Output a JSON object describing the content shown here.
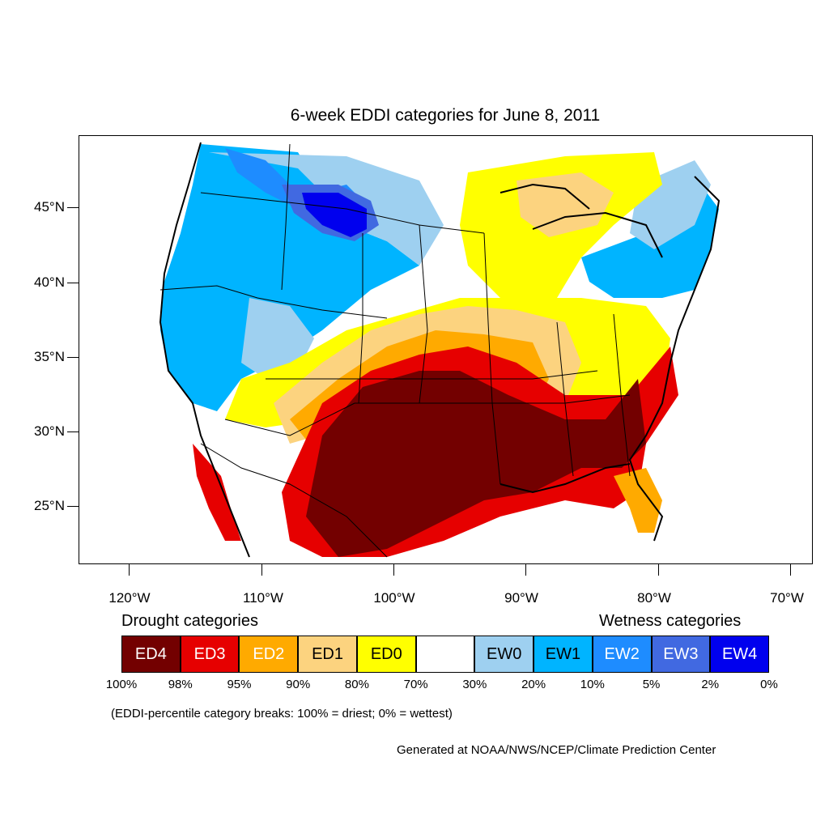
{
  "title": "6-week EDDI categories for June 8, 2011",
  "lat_labels": [
    "45°N",
    "40°N",
    "35°N",
    "30°N",
    "25°N"
  ],
  "lon_labels": [
    "120°W",
    "110°W",
    "100°W",
    "90°W",
    "80°W",
    "70°W"
  ],
  "legend": {
    "drought_heading": "Drought categories",
    "wetness_heading": "Wetness categories",
    "categories": [
      {
        "label": "ED4",
        "color": "#730000",
        "text_color": "#ffffff"
      },
      {
        "label": "ED3",
        "color": "#e60000",
        "text_color": "#ffffff"
      },
      {
        "label": "ED2",
        "color": "#ffaa00",
        "text_color": "#ffffff"
      },
      {
        "label": "ED1",
        "color": "#fcd37f",
        "text_color": "#000000"
      },
      {
        "label": "ED0",
        "color": "#ffff00",
        "text_color": "#000000"
      },
      {
        "label": "",
        "color": "#ffffff",
        "text_color": "#000000"
      },
      {
        "label": "EW0",
        "color": "#9ed0f0",
        "text_color": "#000000"
      },
      {
        "label": "EW1",
        "color": "#00b4ff",
        "text_color": "#000000"
      },
      {
        "label": "EW2",
        "color": "#1e8cff",
        "text_color": "#ffffff"
      },
      {
        "label": "EW3",
        "color": "#4169e1",
        "text_color": "#ffffff"
      },
      {
        "label": "EW4",
        "color": "#0000ee",
        "text_color": "#ffffff"
      }
    ],
    "percentiles": [
      "100%",
      "98%",
      "95%",
      "90%",
      "80%",
      "70%",
      "30%",
      "20%",
      "10%",
      "5%",
      "2%",
      "0%"
    ]
  },
  "note": "(EDDI-percentile category breaks: 100% = driest; 0% = wettest)",
  "credit": "Generated at NOAA/NWS/NCEP/Climate Prediction Center"
}
